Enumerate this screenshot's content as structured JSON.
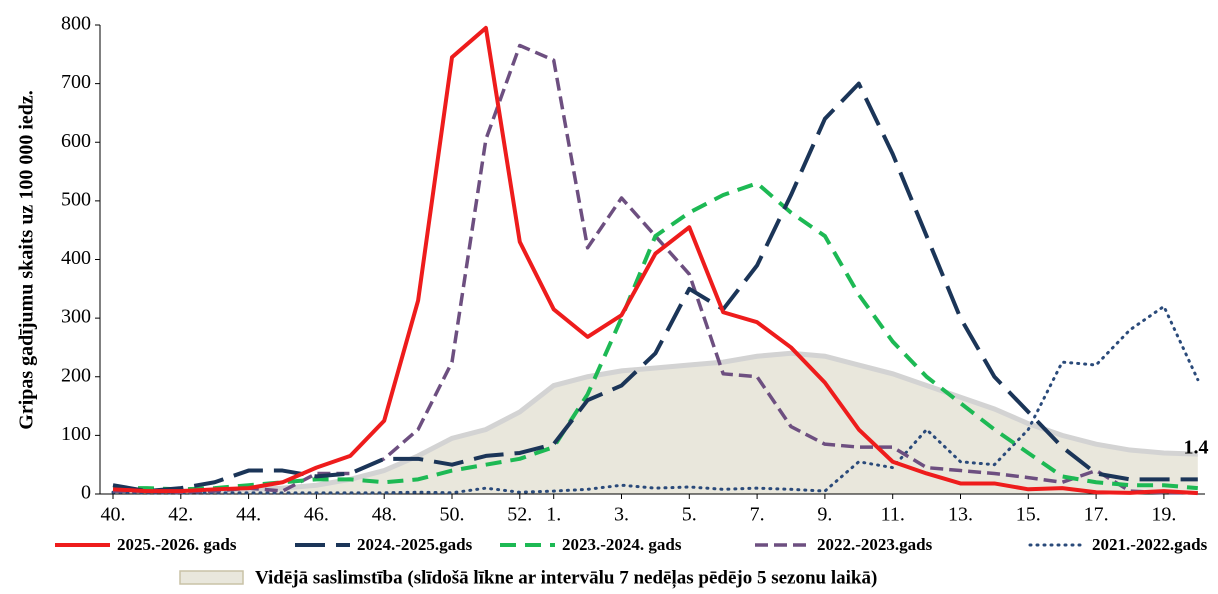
{
  "chart_data": {
    "type": "line",
    "y_label": "Gripas gadījumu skaits uz 100 000 iedz.",
    "categories": [
      "40.",
      null,
      "42.",
      null,
      "44.",
      null,
      "46.",
      null,
      "48.",
      null,
      "50.",
      null,
      "52.",
      "1.",
      null,
      "3.",
      null,
      "5.",
      null,
      "7.",
      null,
      "9.",
      null,
      "11.",
      null,
      "13.",
      null,
      "15.",
      null,
      "17.",
      null,
      "19.",
      null
    ],
    "ylim": [
      0,
      800
    ],
    "yticks": [
      0,
      100,
      200,
      300,
      400,
      500,
      600,
      700,
      800
    ],
    "area": {
      "name": "Vidējā saslimstība (slīdošā līkne ar intervālu 7 nedēļas pēdējo 5 sezonu laikā)",
      "color": "#e9e7dc",
      "edge": "#d3d3d3",
      "values": [
        5,
        5,
        5,
        5,
        8,
        10,
        15,
        25,
        40,
        65,
        95,
        110,
        140,
        185,
        200,
        210,
        215,
        220,
        225,
        235,
        240,
        235,
        220,
        205,
        185,
        165,
        145,
        120,
        100,
        85,
        75,
        70,
        68
      ]
    },
    "series": [
      {
        "name": "2025.-2026. gads",
        "color": "#ee1c1c",
        "dash": "none",
        "width": 4,
        "values": [
          8,
          5,
          5,
          8,
          10,
          20,
          45,
          65,
          125,
          330,
          745,
          795,
          430,
          315,
          268,
          305,
          410,
          455,
          310,
          293,
          250,
          190,
          110,
          55,
          35,
          18,
          18,
          8,
          10,
          3,
          2,
          5,
          1.4
        ]
      },
      {
        "name": "2024.-2025.gads",
        "color": "#1b3558",
        "dash": "30 11",
        "width": 4,
        "values": [
          15,
          5,
          10,
          20,
          40,
          40,
          30,
          35,
          60,
          60,
          50,
          65,
          70,
          85,
          160,
          185,
          240,
          350,
          315,
          390,
          510,
          640,
          700,
          580,
          440,
          300,
          200,
          140,
          80,
          35,
          25,
          25,
          25
        ]
      },
      {
        "name": "2023.-2024. gads",
        "color": "#1db954",
        "dash": "16 9",
        "width": 4,
        "values": [
          10,
          10,
          8,
          10,
          15,
          20,
          25,
          25,
          20,
          25,
          40,
          50,
          60,
          80,
          170,
          300,
          440,
          480,
          510,
          530,
          480,
          440,
          340,
          260,
          200,
          155,
          110,
          70,
          30,
          20,
          15,
          15,
          10
        ]
      },
      {
        "name": "2022.-2023.gads",
        "color": "#6d4f80",
        "dash": "13 6",
        "width": 3.5,
        "values": [
          5,
          5,
          3,
          5,
          10,
          5,
          35,
          35,
          60,
          110,
          225,
          605,
          765,
          740,
          420,
          505,
          440,
          375,
          205,
          200,
          115,
          85,
          80,
          80,
          45,
          40,
          35,
          28,
          20,
          40,
          5,
          2,
          2
        ]
      },
      {
        "name": "2021.-2022.gads",
        "color": "#2a4a7a",
        "dash": "1 6",
        "width": 3,
        "values": [
          3,
          2,
          2,
          2,
          2,
          2,
          2,
          2,
          2,
          3,
          2,
          10,
          3,
          5,
          8,
          15,
          10,
          12,
          8,
          10,
          8,
          5,
          55,
          45,
          110,
          55,
          50,
          110,
          225,
          220,
          280,
          320,
          195
        ]
      }
    ],
    "annotation": "1.4"
  }
}
